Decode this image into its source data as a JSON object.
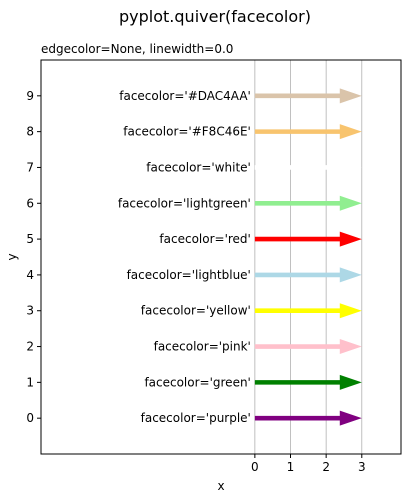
{
  "chart_data": {
    "type": "quiver",
    "title": "pyplot.quiver(facecolor)",
    "subtitle": "edgecolor=None, linewidth=0.0",
    "xlabel": "x",
    "ylabel": "y",
    "xlim": [
      -6,
      4.1
    ],
    "ylim": [
      -1,
      10
    ],
    "xticks": [
      0,
      1,
      2,
      3
    ],
    "yticks": [
      0,
      1,
      2,
      3,
      4,
      5,
      6,
      7,
      8,
      9
    ],
    "vertical_gridlines_x": [
      0,
      1,
      2,
      3
    ],
    "arrows": [
      {
        "y": 0,
        "x_start": 0,
        "x_end": 3,
        "label": "facecolor='purple'",
        "color": "#800080"
      },
      {
        "y": 1,
        "x_start": 0,
        "x_end": 3,
        "label": "facecolor='green'",
        "color": "#008000"
      },
      {
        "y": 2,
        "x_start": 0,
        "x_end": 3,
        "label": "facecolor='pink'",
        "color": "#FFC0CB"
      },
      {
        "y": 3,
        "x_start": 0,
        "x_end": 3,
        "label": "facecolor='yellow'",
        "color": "#FFFF00"
      },
      {
        "y": 4,
        "x_start": 0,
        "x_end": 3,
        "label": "facecolor='lightblue'",
        "color": "#ADD8E6"
      },
      {
        "y": 5,
        "x_start": 0,
        "x_end": 3,
        "label": "facecolor='red'",
        "color": "#FF0000"
      },
      {
        "y": 6,
        "x_start": 0,
        "x_end": 3,
        "label": "facecolor='lightgreen'",
        "color": "#90EE90"
      },
      {
        "y": 7,
        "x_start": 0,
        "x_end": 3,
        "label": "facecolor='white'",
        "color": "#FFFFFF"
      },
      {
        "y": 8,
        "x_start": 0,
        "x_end": 3,
        "label": "facecolor='#F8C46E'",
        "color": "#F8C46E"
      },
      {
        "y": 9,
        "x_start": 0,
        "x_end": 3,
        "label": "facecolor='#DAC4AA'",
        "color": "#DAC4AA"
      }
    ]
  }
}
